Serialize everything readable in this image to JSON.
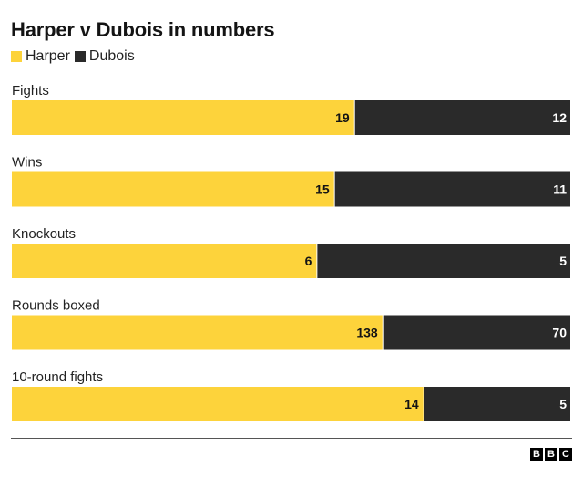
{
  "chart_data": {
    "type": "bar",
    "orientation": "horizontal",
    "stacked": true,
    "normalized": true,
    "title": "Harper v Dubois in numbers",
    "categories": [
      "Fights",
      "Wins",
      "Knockouts",
      "Rounds boxed",
      "10-round fights"
    ],
    "series": [
      {
        "name": "Harper",
        "color": "#fdd33b",
        "values": [
          19,
          15,
          6,
          138,
          14
        ]
      },
      {
        "name": "Dubois",
        "color": "#2a2a2a",
        "values": [
          12,
          11,
          5,
          70,
          5
        ]
      }
    ],
    "legend_position": "top-left",
    "grid": false
  },
  "logo": {
    "letters": [
      "B",
      "B",
      "C"
    ]
  }
}
